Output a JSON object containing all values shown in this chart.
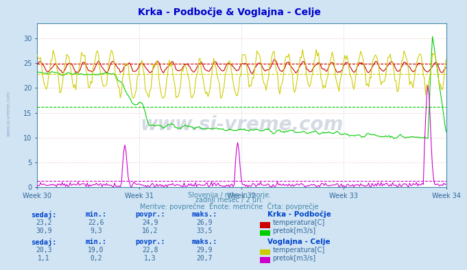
{
  "title": "Krka - Podbočje & Voglajna - Celje",
  "title_color": "#0000cc",
  "bg_color": "#d0e4f4",
  "plot_bg_color": "#ffffff",
  "weeks": [
    "Week 30",
    "Week 31",
    "Week 32",
    "Week 33",
    "Week 34"
  ],
  "ylim": [
    0,
    33
  ],
  "yticks": [
    0,
    5,
    10,
    15,
    20,
    25,
    30
  ],
  "subtitle1": "Slovenija / reke in morje.",
  "subtitle2": "zadnji mesec / 2 uri.",
  "subtitle3": "Meritve: povprečne  Enote: metrične  Črta: povprečje",
  "subtitle_color": "#4488aa",
  "watermark": "www.si-vreme.com",
  "station1_name": "Krka - Podbočje",
  "station2_name": "Voglajna - Celje",
  "krka_temp_color": "#cc0000",
  "krka_flow_color": "#00cc00",
  "vogl_temp_color": "#cccc00",
  "vogl_flow_color": "#cc00cc",
  "krka_temp_avg": 24.9,
  "krka_flow_avg": 16.2,
  "vogl_temp_avg": 22.8,
  "vogl_flow_avg": 1.3,
  "table_header_color": "#0044cc",
  "table_data_color": "#336699",
  "krka_sedaj_temp": "23,2",
  "krka_min_temp": "22,6",
  "krka_povpr_temp": "24,9",
  "krka_maks_temp": "26,9",
  "krka_sedaj_flow": "30,9",
  "krka_min_flow": "9,3",
  "krka_povpr_flow": "16,2",
  "krka_maks_flow": "33,5",
  "vogl_sedaj_temp": "20,3",
  "vogl_min_temp": "19,0",
  "vogl_povpr_temp": "22,8",
  "vogl_maks_temp": "29,9",
  "vogl_sedaj_flow": "1,1",
  "vogl_min_flow": "0,2",
  "vogl_povpr_flow": "1,3",
  "vogl_maks_flow": "20,7"
}
